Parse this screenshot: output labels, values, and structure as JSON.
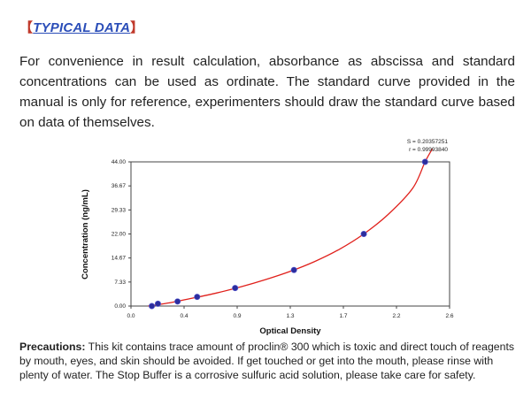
{
  "heading": {
    "open_bracket": "【",
    "title": "TYPICAL DATA",
    "close_bracket": "】"
  },
  "intro_text": "For convenience in result calculation, absorbance as abscissa and standard concentrations can be used as ordinate. The standard curve provided in the manual is only for reference, experimenters should draw the standard curve based on data of themselves.",
  "chart_data": {
    "type": "scatter",
    "xlabel": "Optical Density",
    "ylabel": "Concentration (ng/mL)",
    "x_ticks": [
      "0.0",
      "0.4",
      "0.9",
      "1.3",
      "1.7",
      "2.2",
      "2.6"
    ],
    "y_ticks": [
      "0.00",
      "7.33",
      "14.67",
      "22.00",
      "29.33",
      "36.67",
      "44.00"
    ],
    "xlim": [
      0.0,
      2.6
    ],
    "ylim": [
      0.0,
      44.0
    ],
    "annotations": [
      "S = 0.20357251",
      "r = 0.99993840"
    ],
    "grid": false,
    "points": [
      {
        "x": 0.17,
        "y": 0.0
      },
      {
        "x": 0.22,
        "y": 0.7
      },
      {
        "x": 0.38,
        "y": 1.4
      },
      {
        "x": 0.54,
        "y": 2.8
      },
      {
        "x": 0.85,
        "y": 5.5
      },
      {
        "x": 1.33,
        "y": 11.0
      },
      {
        "x": 1.9,
        "y": 22.0
      },
      {
        "x": 2.4,
        "y": 44.0
      }
    ],
    "fit_curve": [
      {
        "x": 0.14,
        "y": 0.0
      },
      {
        "x": 0.3,
        "y": 0.9
      },
      {
        "x": 0.5,
        "y": 2.4
      },
      {
        "x": 0.7,
        "y": 4.0
      },
      {
        "x": 0.9,
        "y": 5.9
      },
      {
        "x": 1.1,
        "y": 8.1
      },
      {
        "x": 1.3,
        "y": 10.6
      },
      {
        "x": 1.5,
        "y": 13.6
      },
      {
        "x": 1.7,
        "y": 17.3
      },
      {
        "x": 1.9,
        "y": 22.0
      },
      {
        "x": 2.1,
        "y": 28.0
      },
      {
        "x": 2.3,
        "y": 36.0
      },
      {
        "x": 2.4,
        "y": 44.0
      },
      {
        "x": 2.46,
        "y": 48.0
      }
    ],
    "point_color": "#2b2d9e",
    "curve_color": "#e0201b"
  },
  "precautions": {
    "label": "Precautions:",
    "text": " This kit contains trace amount of proclin® 300 which is toxic and direct touch of reagents by mouth, eyes, and skin should be avoided. If get touched or get into the mouth, please rinse with plenty of water. The Stop Buffer is a corrosive sulfuric acid solution, please take care for safety."
  }
}
